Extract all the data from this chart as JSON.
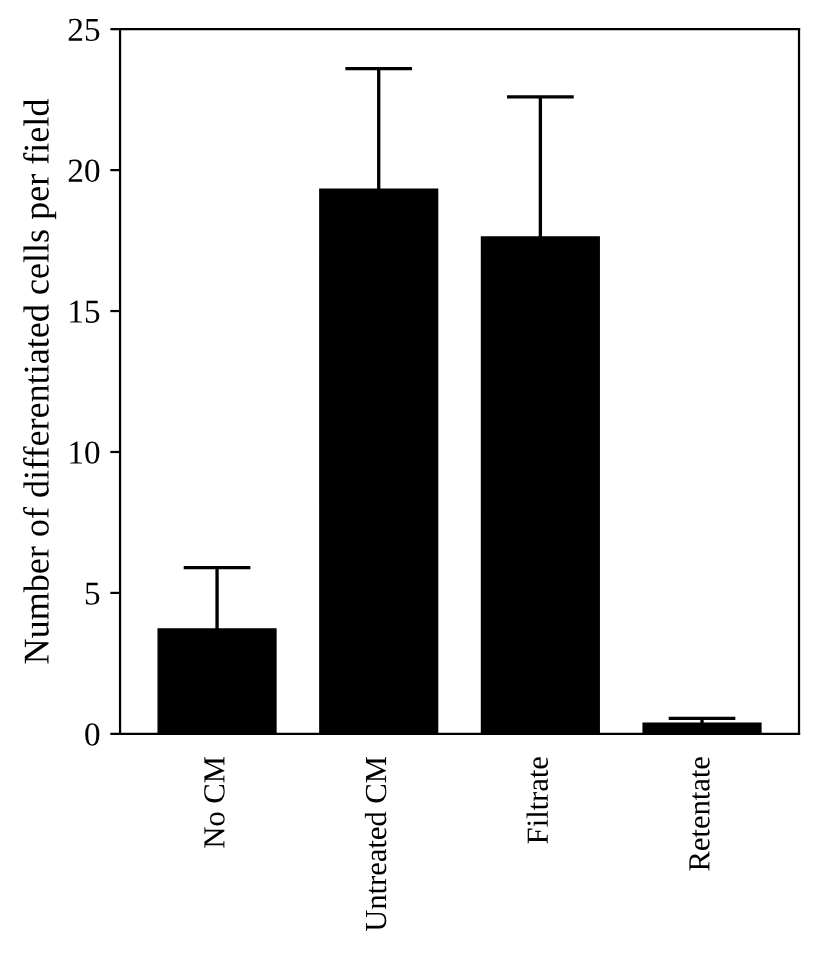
{
  "chart_data": {
    "type": "bar",
    "ylabel": "Number of differentiated cells per field",
    "categories": [
      "No CM",
      "Untreated CM",
      "Filtrate",
      "Retentate"
    ],
    "values": [
      3.7,
      19.3,
      17.6,
      0.35
    ],
    "errors": [
      2.2,
      4.3,
      5.0,
      0.2
    ],
    "color": "#000000",
    "ylim": [
      0,
      25
    ],
    "yticks": [
      0,
      5,
      10,
      15,
      20,
      25
    ],
    "grid": false
  }
}
